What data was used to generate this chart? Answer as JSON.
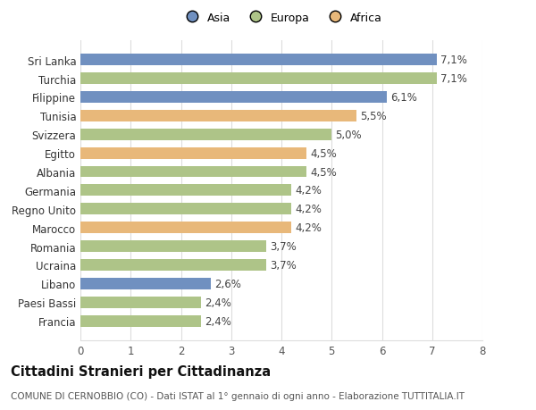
{
  "categories": [
    "Francia",
    "Paesi Bassi",
    "Libano",
    "Ucraina",
    "Romania",
    "Marocco",
    "Regno Unito",
    "Germania",
    "Albania",
    "Egitto",
    "Svizzera",
    "Tunisia",
    "Filippine",
    "Turchia",
    "Sri Lanka"
  ],
  "values": [
    2.4,
    2.4,
    2.6,
    3.7,
    3.7,
    4.2,
    4.2,
    4.2,
    4.5,
    4.5,
    5.0,
    5.5,
    6.1,
    7.1,
    7.1
  ],
  "labels": [
    "2,4%",
    "2,4%",
    "2,6%",
    "3,7%",
    "3,7%",
    "4,2%",
    "4,2%",
    "4,2%",
    "4,5%",
    "4,5%",
    "5,0%",
    "5,5%",
    "6,1%",
    "7,1%",
    "7,1%"
  ],
  "continents": [
    "Europa",
    "Europa",
    "Asia",
    "Europa",
    "Europa",
    "Africa",
    "Europa",
    "Europa",
    "Europa",
    "Africa",
    "Europa",
    "Africa",
    "Asia",
    "Europa",
    "Asia"
  ],
  "colors": {
    "Asia": "#7090c0",
    "Europa": "#aec488",
    "Africa": "#e8b87a"
  },
  "legend_labels": [
    "Asia",
    "Europa",
    "Africa"
  ],
  "legend_colors": [
    "#7090c0",
    "#aec488",
    "#e8b87a"
  ],
  "title": "Cittadini Stranieri per Cittadinanza",
  "subtitle": "COMUNE DI CERNOBBIO (CO) - Dati ISTAT al 1° gennaio di ogni anno - Elaborazione TUTTITALIA.IT",
  "xlim": [
    0,
    8
  ],
  "xticks": [
    0,
    1,
    2,
    3,
    4,
    5,
    6,
    7,
    8
  ],
  "background_color": "#ffffff",
  "bar_height": 0.62,
  "grid_color": "#dddddd",
  "label_fontsize": 8.5,
  "tick_fontsize": 8.5,
  "title_fontsize": 10.5,
  "subtitle_fontsize": 7.5
}
